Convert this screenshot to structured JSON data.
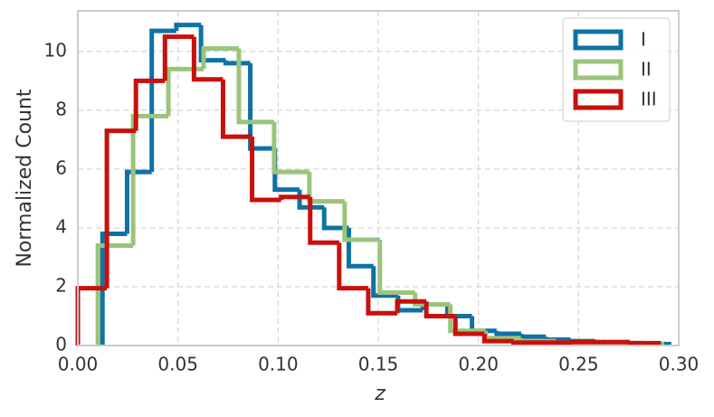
{
  "chart_data": {
    "type": "histogram-step",
    "xlabel": "z",
    "ylabel": "Normalized Count",
    "xlim": [
      0,
      0.3
    ],
    "ylim": [
      0,
      11.38
    ],
    "xticks": [
      {
        "value": 0,
        "label": "0.00"
      },
      {
        "value": 0.05,
        "label": "0.05"
      },
      {
        "value": 0.1,
        "label": "0.10"
      },
      {
        "value": 0.15,
        "label": "0.15"
      },
      {
        "value": 0.2,
        "label": "0.20"
      },
      {
        "value": 0.25,
        "label": "0.25"
      },
      {
        "value": 0.3,
        "label": "0.30"
      }
    ],
    "yticks": [
      0,
      2,
      4,
      6,
      8,
      10
    ],
    "grid": true,
    "legend": "upper right",
    "series": [
      {
        "name": "I",
        "color": "#0e72a6",
        "bins": [
          0.0123,
          0.0246,
          0.0369,
          0.0492,
          0.0615,
          0.0738,
          0.0861,
          0.0984,
          0.1107,
          0.123,
          0.1353,
          0.1476,
          0.1599,
          0.1722,
          0.1845,
          0.1968,
          0.2091,
          0.2214,
          0.2337,
          0.246,
          0.2583,
          0.2706,
          0.2829,
          0.2952
        ],
        "values": [
          3.8,
          5.9,
          10.7,
          10.9,
          9.7,
          9.6,
          6.7,
          5.3,
          4.7,
          4.0,
          2.7,
          1.7,
          1.2,
          1.4,
          1.0,
          0.5,
          0.4,
          0.3,
          0.2,
          0.15,
          0.1,
          0.08,
          0.05
        ]
      },
      {
        "name": "II",
        "color": "#9bc47b",
        "bins": [
          0.01,
          0.0276,
          0.0452,
          0.0628,
          0.0804,
          0.098,
          0.1156,
          0.1332,
          0.1508,
          0.1684,
          0.186,
          0.2036,
          0.2212,
          0.2388,
          0.2564,
          0.274,
          0.2916
        ],
        "values": [
          3.4,
          7.8,
          9.4,
          10.1,
          7.6,
          5.9,
          4.9,
          3.6,
          1.8,
          1.4,
          0.5,
          0.25,
          0.15,
          0.1,
          0.08,
          0.05
        ]
      },
      {
        "name": "III",
        "color": "#c8100c",
        "bins": [
          0,
          0.0145,
          0.029,
          0.0435,
          0.058,
          0.0725,
          0.087,
          0.1015,
          0.116,
          0.1305,
          0.145,
          0.1595,
          0.174,
          0.1885,
          0.203,
          0.2175,
          0.232,
          0.2465,
          0.261,
          0.2755,
          0.29
        ],
        "values": [
          1.95,
          7.3,
          9.0,
          10.5,
          9.05,
          7.1,
          4.95,
          5.05,
          3.5,
          1.95,
          1.1,
          1.5,
          1.0,
          0.4,
          0.15,
          0.1,
          0.1,
          0.12,
          0.12,
          0.08
        ]
      }
    ]
  }
}
